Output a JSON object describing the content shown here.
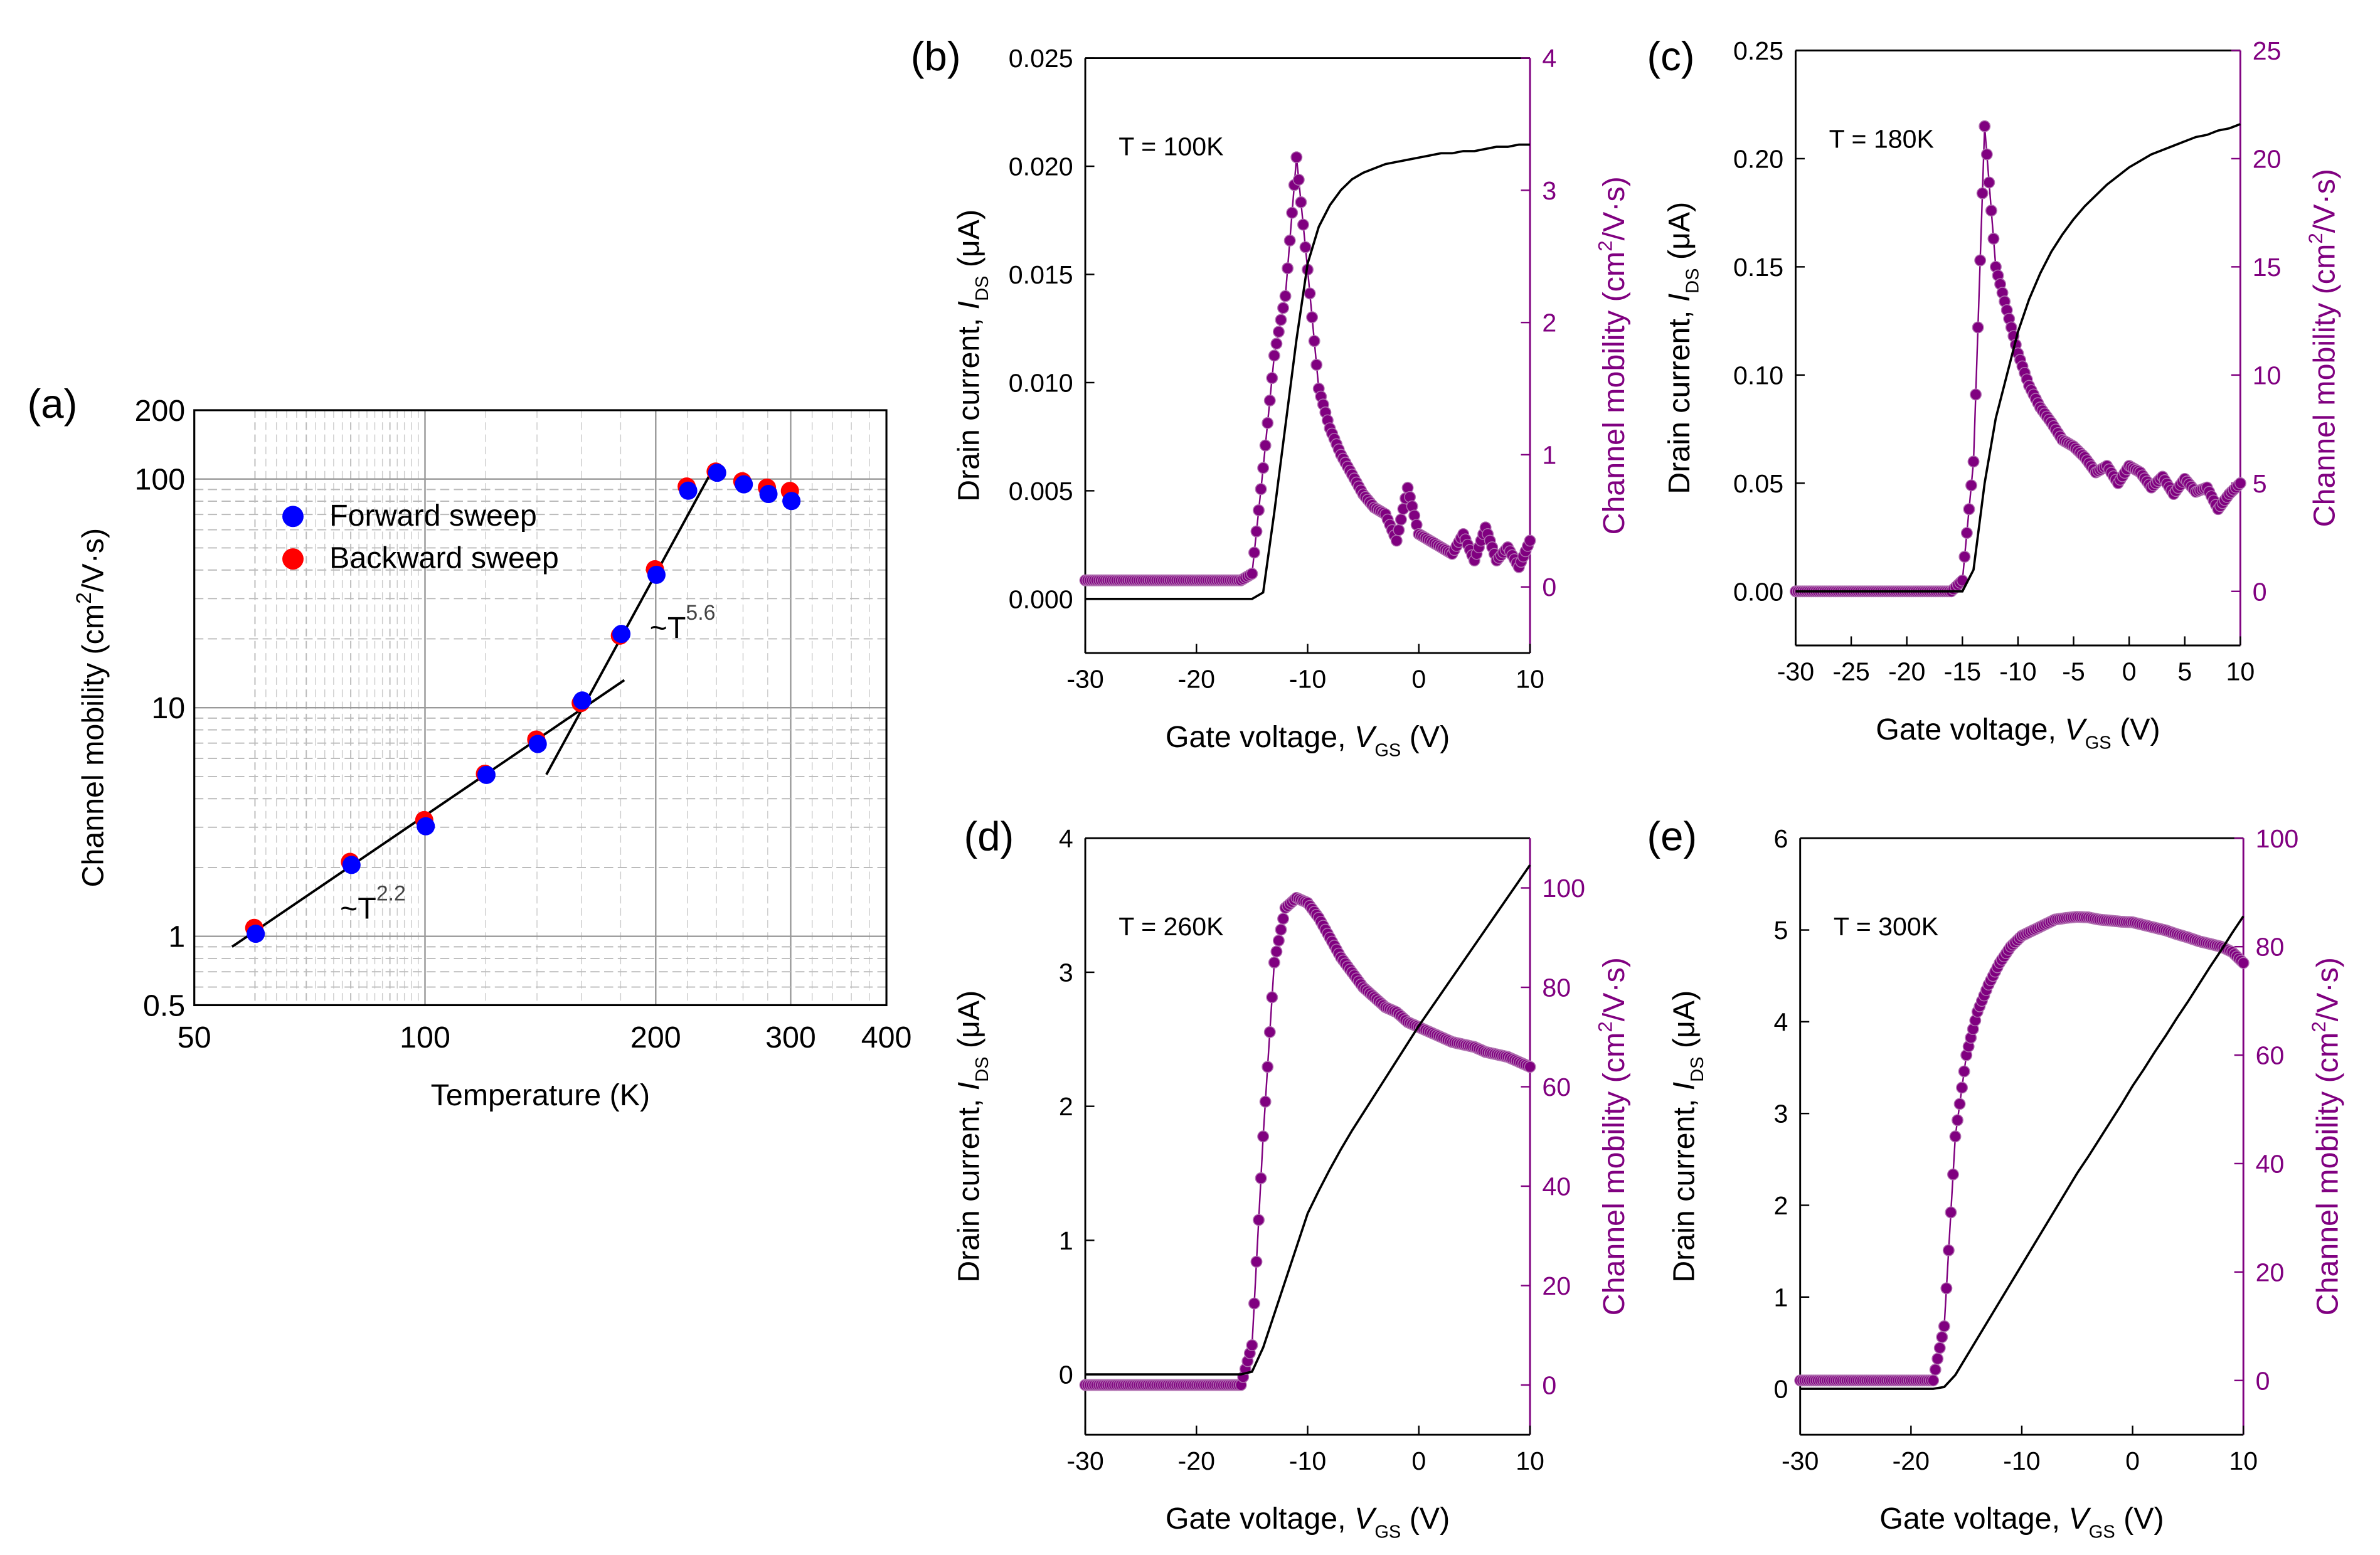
{
  "chart_data": [
    {
      "panel": "(a)",
      "type": "scatter",
      "xscale": "log",
      "yscale": "log",
      "xlabel": "Temperature (K)",
      "ylabel": {
        "prefix": "Channel mobility (cm",
        "sup": "2",
        "suffix": "/V·s)"
      },
      "xlim": [
        50,
        400
      ],
      "ylim": [
        0.5,
        200
      ],
      "xticks": [
        {
          "v": 50,
          "l": "50"
        },
        {
          "v": 100,
          "l": "100"
        },
        {
          "v": 200,
          "l": "200"
        },
        {
          "v": 300,
          "l": "300"
        },
        {
          "v": 400,
          "l": "400"
        }
      ],
      "yticks": [
        {
          "v": 0.5,
          "l": "0.5"
        },
        {
          "v": 1,
          "l": "1"
        },
        {
          "v": 10,
          "l": "10"
        },
        {
          "v": 100,
          "l": "100"
        },
        {
          "v": 200,
          "l": "200"
        }
      ],
      "grid": true,
      "legend": {
        "placement": "top-left",
        "entries": [
          "Forward sweep",
          "Backward sweep"
        ]
      },
      "series": [
        {
          "name": "Forward sweep",
          "color": "#0000ff",
          "x": [
            60,
            80,
            100,
            120,
            140,
            160,
            180,
            200,
            220,
            240,
            260,
            280,
            300
          ],
          "y": [
            1.05,
            2.1,
            3.1,
            5.2,
            7.1,
            11.0,
            21.5,
            39,
            91,
            109,
            97,
            88,
            82
          ]
        },
        {
          "name": "Backward sweep",
          "color": "#ff0000",
          "x": [
            60,
            80,
            100,
            120,
            140,
            160,
            180,
            200,
            220,
            240,
            260,
            280,
            300
          ],
          "y": [
            1.08,
            2.1,
            3.2,
            5.1,
            7.2,
            10.4,
            20.5,
            40,
            92,
            107,
            97,
            91,
            88
          ]
        }
      ],
      "fits": [
        {
          "label": {
            "base": "~T",
            "sup": "2.2"
          },
          "x": [
            56,
            182
          ],
          "y": [
            0.9,
            13.2
          ]
        },
        {
          "label": {
            "base": "~T",
            "sup": "5.6"
          },
          "x": [
            144,
            238
          ],
          "y": [
            5.1,
            112
          ]
        }
      ]
    },
    {
      "panel": "(b)",
      "type": "line",
      "annotation": "T = 100K",
      "xlabel": {
        "prefix": "Gate voltage, ",
        "var": "V",
        "sub": "GS",
        "suffix": " (V)"
      },
      "ylabel": {
        "prefix": "Drain current, ",
        "var": "I",
        "sub": "DS",
        "suffix": " (μA)"
      },
      "y2label": {
        "prefix": "Channel mobility (cm",
        "sup": "2",
        "suffix": "/V·s)"
      },
      "xlim": [
        -30,
        10
      ],
      "ylim": [
        -0.0025,
        0.025
      ],
      "y2lim": [
        -0.5,
        4
      ],
      "xticks": [
        "-30",
        "-20",
        "-10",
        "0",
        "10"
      ],
      "yticks": [
        "0.000",
        "0.005",
        "0.010",
        "0.015",
        "0.020",
        "0.025"
      ],
      "y2ticks": [
        "0",
        "1",
        "2",
        "3",
        "4"
      ],
      "x": [
        -30,
        -29,
        -28,
        -27,
        -26,
        -25,
        -24,
        -23,
        -22,
        -21,
        -20,
        -19,
        -18,
        -17,
        -16,
        -15,
        -14,
        -13,
        -12,
        -11,
        -10,
        -9,
        -8,
        -7,
        -6,
        -5,
        -4,
        -3,
        -2,
        -1,
        0,
        1,
        2,
        3,
        4,
        5,
        6,
        7,
        8,
        9,
        10
      ],
      "current": [
        0,
        0,
        0,
        0,
        0,
        0,
        0,
        0,
        0,
        0,
        0,
        0,
        0,
        0,
        0,
        0,
        0.0003,
        0.004,
        0.008,
        0.012,
        0.0155,
        0.0172,
        0.0182,
        0.0189,
        0.0194,
        0.0197,
        0.0199,
        0.0201,
        0.0202,
        0.0203,
        0.0204,
        0.0205,
        0.0206,
        0.0206,
        0.0207,
        0.0207,
        0.0208,
        0.0209,
        0.0209,
        0.021,
        0.021
      ],
      "mobility": [
        0.05,
        0.05,
        0.05,
        0.05,
        0.05,
        0.05,
        0.05,
        0.05,
        0.05,
        0.05,
        0.05,
        0.05,
        0.05,
        0.05,
        0.05,
        0.1,
        0.9,
        1.75,
        2.2,
        3.25,
        2.4,
        1.5,
        1.2,
        1.0,
        0.85,
        0.7,
        0.6,
        0.55,
        0.35,
        0.75,
        0.4,
        0.35,
        0.3,
        0.25,
        0.4,
        0.2,
        0.45,
        0.2,
        0.3,
        0.15,
        0.35
      ]
    },
    {
      "panel": "(c)",
      "type": "line",
      "annotation": "T = 180K",
      "xlabel": {
        "prefix": "Gate voltage, ",
        "var": "V",
        "sub": "GS",
        "suffix": " (V)"
      },
      "ylabel": {
        "prefix": "Drain current, ",
        "var": "I",
        "sub": "DS",
        "suffix": " (μA)"
      },
      "y2label": {
        "prefix": "Channel mobility (cm",
        "sup": "2",
        "suffix": "/V·s)"
      },
      "xlim": [
        -30,
        10
      ],
      "ylim": [
        -0.025,
        0.25
      ],
      "y2lim": [
        -2.5,
        25
      ],
      "xticks": [
        "-30",
        "-25",
        "-20",
        "-15",
        "-10",
        "-5",
        "0",
        "5",
        "10"
      ],
      "yticks": [
        "0.00",
        "0.05",
        "0.10",
        "0.15",
        "0.20",
        "0.25"
      ],
      "y2ticks": [
        "0",
        "5",
        "10",
        "15",
        "20",
        "25"
      ],
      "x": [
        -30,
        -29,
        -28,
        -27,
        -26,
        -25,
        -24,
        -23,
        -22,
        -21,
        -20,
        -19,
        -18,
        -17,
        -16,
        -15,
        -14,
        -13,
        -12,
        -11,
        -10,
        -9,
        -8,
        -7,
        -6,
        -5,
        -4,
        -3,
        -2,
        -1,
        0,
        1,
        2,
        3,
        4,
        5,
        6,
        7,
        8,
        9,
        10
      ],
      "current": [
        0,
        0,
        0,
        0,
        0,
        0,
        0,
        0,
        0,
        0,
        0,
        0,
        0,
        0,
        0,
        0,
        0.01,
        0.05,
        0.08,
        0.1,
        0.12,
        0.135,
        0.147,
        0.157,
        0.165,
        0.172,
        0.178,
        0.183,
        0.188,
        0.192,
        0.196,
        0.199,
        0.202,
        0.204,
        0.206,
        0.208,
        0.21,
        0.211,
        0.213,
        0.214,
        0.216
      ],
      "mobility": [
        0,
        0,
        0,
        0,
        0,
        0,
        0,
        0,
        0,
        0,
        0,
        0,
        0,
        0,
        0,
        0.5,
        6,
        21.5,
        15,
        13,
        11,
        9.5,
        8.5,
        7.8,
        7,
        6.7,
        6.2,
        5.5,
        5.8,
        5,
        5.8,
        5.5,
        4.8,
        5.3,
        4.5,
        5.2,
        4.6,
        4.8,
        3.8,
        4.5,
        5
      ]
    },
    {
      "panel": "(d)",
      "type": "line",
      "annotation": "T = 260K",
      "xlabel": {
        "prefix": "Gate voltage, ",
        "var": "V",
        "sub": "GS",
        "suffix": " (V)"
      },
      "ylabel": {
        "prefix": "Drain current, ",
        "var": "I",
        "sub": "DS",
        "suffix": " (μA)"
      },
      "y2label": {
        "prefix": "Channel mobility (cm",
        "sup": "2",
        "suffix": "/V·s)"
      },
      "xlim": [
        -30,
        10
      ],
      "ylim": [
        -0.45,
        4
      ],
      "y2lim": [
        -10,
        110
      ],
      "xticks": [
        "-30",
        "-20",
        "-10",
        "0",
        "10"
      ],
      "yticks": [
        "0",
        "1",
        "2",
        "3",
        "4"
      ],
      "y2ticks": [
        "0",
        "20",
        "40",
        "60",
        "80",
        "100"
      ],
      "x": [
        -30,
        -29,
        -28,
        -27,
        -26,
        -25,
        -24,
        -23,
        -22,
        -21,
        -20,
        -19,
        -18,
        -17,
        -16,
        -15,
        -14,
        -13,
        -12,
        -11,
        -10,
        -9,
        -8,
        -7,
        -6,
        -5,
        -4,
        -3,
        -2,
        -1,
        0,
        1,
        2,
        3,
        4,
        5,
        6,
        7,
        8,
        9,
        10
      ],
      "current": [
        0,
        0,
        0,
        0,
        0,
        0,
        0,
        0,
        0,
        0,
        0,
        0,
        0,
        0,
        0,
        0.02,
        0.2,
        0.45,
        0.7,
        0.95,
        1.2,
        1.37,
        1.53,
        1.68,
        1.82,
        1.95,
        2.08,
        2.21,
        2.34,
        2.47,
        2.6,
        2.72,
        2.84,
        2.96,
        3.08,
        3.2,
        3.32,
        3.44,
        3.56,
        3.68,
        3.8
      ],
      "mobility": [
        0,
        0,
        0,
        0,
        0,
        0,
        0,
        0,
        0,
        0,
        0,
        0,
        0,
        0,
        0,
        8,
        50,
        85,
        96,
        98,
        97,
        94,
        90,
        86,
        83,
        80,
        78,
        76,
        75,
        73,
        72,
        71,
        70,
        69,
        68.5,
        68,
        67,
        66.5,
        66,
        65,
        64
      ]
    },
    {
      "panel": "(e)",
      "type": "line",
      "annotation": "T = 300K",
      "xlabel": {
        "prefix": "Gate voltage, ",
        "var": "V",
        "sub": "GS",
        "suffix": " (V)"
      },
      "ylabel": {
        "prefix": "Drain current, ",
        "var": "I",
        "sub": "DS",
        "suffix": " (μA)"
      },
      "y2label": {
        "prefix": "Channel mobility (cm",
        "sup": "2",
        "suffix": "/V·s)"
      },
      "xlim": [
        -30,
        10
      ],
      "ylim": [
        -0.5,
        6
      ],
      "y2lim": [
        -10,
        100
      ],
      "xticks": [
        "-30",
        "-20",
        "-10",
        "0",
        "10"
      ],
      "yticks": [
        "0",
        "1",
        "2",
        "3",
        "4",
        "5",
        "6"
      ],
      "y2ticks": [
        "0",
        "20",
        "40",
        "60",
        "80",
        "100"
      ],
      "x": [
        -30,
        -29,
        -28,
        -27,
        -26,
        -25,
        -24,
        -23,
        -22,
        -21,
        -20,
        -19,
        -18,
        -17,
        -16,
        -15,
        -14,
        -13,
        -12,
        -11,
        -10,
        -9,
        -8,
        -7,
        -6,
        -5,
        -4,
        -3,
        -2,
        -1,
        0,
        1,
        2,
        3,
        4,
        5,
        6,
        7,
        8,
        9,
        10
      ],
      "current": [
        0,
        0,
        0,
        0,
        0,
        0,
        0,
        0,
        0,
        0,
        0,
        0,
        0,
        0.02,
        0.15,
        0.35,
        0.55,
        0.75,
        0.95,
        1.15,
        1.35,
        1.55,
        1.75,
        1.95,
        2.15,
        2.35,
        2.53,
        2.72,
        2.91,
        3.1,
        3.3,
        3.48,
        3.67,
        3.85,
        4.04,
        4.22,
        4.41,
        4.6,
        4.78,
        4.97,
        5.15
      ],
      "mobility": [
        0,
        0,
        0,
        0,
        0,
        0,
        0,
        0,
        0,
        0,
        0,
        0,
        0,
        10,
        45,
        60,
        68,
        73,
        77,
        80,
        82,
        83,
        84,
        85,
        85.3,
        85.5,
        85.4,
        85,
        84.8,
        84.6,
        84.5,
        84,
        83.5,
        83,
        82.3,
        81.7,
        81,
        80.5,
        80,
        79,
        77
      ]
    }
  ]
}
